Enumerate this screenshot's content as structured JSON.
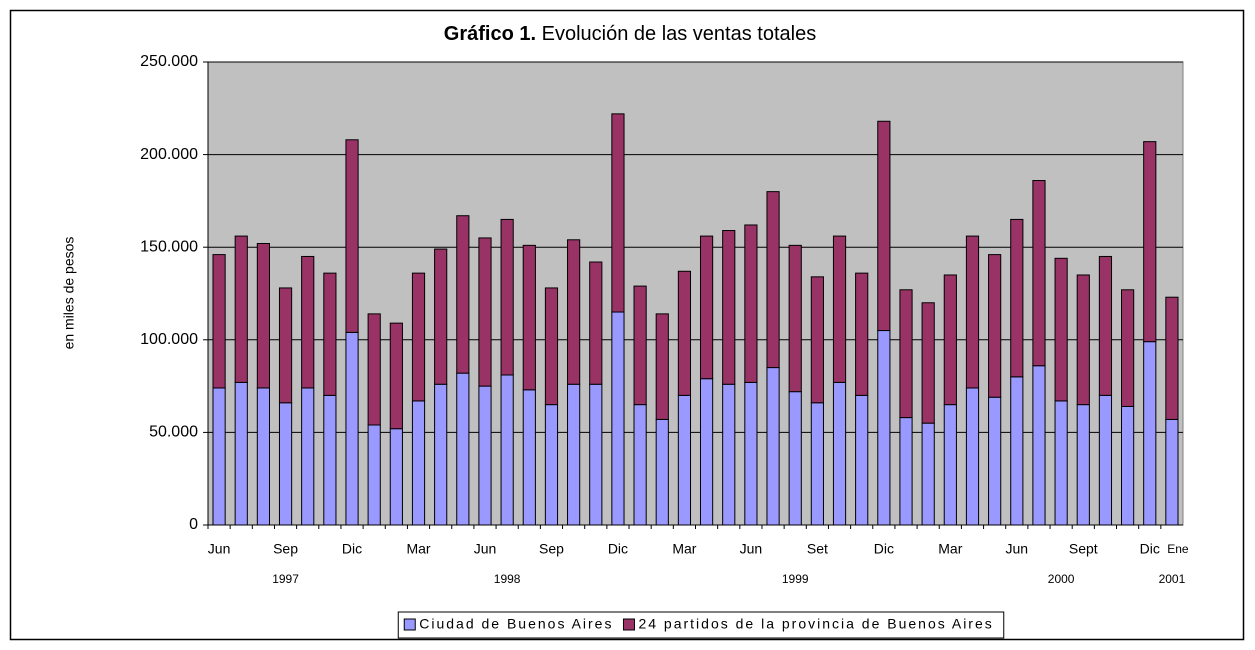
{
  "chart_data": {
    "type": "stacked_bar",
    "title_label": "Gráfico 1.",
    "title": "Evolución de las ventas totales",
    "y_label": "en miles de pesos",
    "categories": [
      "Jun",
      null,
      null,
      "Sep",
      null,
      null,
      "Dic",
      null,
      null,
      "Mar",
      null,
      null,
      "Jun",
      null,
      null,
      "Sep",
      null,
      null,
      "Dic",
      null,
      null,
      "Mar",
      null,
      null,
      "Jun",
      null,
      null,
      "Set",
      null,
      null,
      "Dic",
      null,
      null,
      "Mar",
      null,
      null,
      "Jun",
      null,
      null,
      "Sept",
      null,
      null,
      "Dic",
      "Ene"
    ],
    "category_groups": [
      null,
      null,
      null,
      "1997",
      null,
      null,
      null,
      null,
      null,
      null,
      null,
      null,
      null,
      "1998",
      null,
      null,
      null,
      null,
      null,
      null,
      null,
      null,
      null,
      null,
      null,
      null,
      "1999",
      null,
      null,
      null,
      null,
      null,
      null,
      null,
      null,
      null,
      null,
      null,
      "2000",
      null,
      null,
      null,
      null,
      "2001"
    ],
    "series": [
      {
        "name": "Ciudad de Buenos Aires",
        "color": "#9999ff",
        "values": [
          74000,
          77000,
          74000,
          66000,
          74000,
          70000,
          104000,
          54000,
          52000,
          67000,
          76000,
          82000,
          75000,
          81000,
          73000,
          65000,
          76000,
          76000,
          115000,
          65000,
          57000,
          70000,
          79000,
          76000,
          77000,
          85000,
          72000,
          66000,
          77000,
          70000,
          105000,
          58000,
          55000,
          65000,
          74000,
          69000,
          80000,
          86000,
          67000,
          65000,
          70000,
          64000,
          99000,
          57000
        ]
      },
      {
        "name": "24 partidos de la provincia de Buenos Aires",
        "color": "#993366",
        "values": [
          72000,
          79000,
          78000,
          62000,
          71000,
          66000,
          104000,
          60000,
          57000,
          69000,
          73000,
          85000,
          80000,
          84000,
          78000,
          63000,
          78000,
          66000,
          107000,
          64000,
          57000,
          67000,
          77000,
          83000,
          85000,
          95000,
          79000,
          68000,
          79000,
          66000,
          113000,
          69000,
          65000,
          70000,
          82000,
          77000,
          85000,
          100000,
          77000,
          70000,
          75000,
          63000,
          108000,
          66000
        ]
      }
    ],
    "ylim": [
      0,
      250000
    ],
    "yticks": [
      0,
      {
        "value": 50000,
        "label": "50.000"
      },
      {
        "value": 100000,
        "label": "100.000"
      },
      {
        "value": 150000,
        "label": "150.000"
      },
      {
        "value": 200000,
        "label": "200.000"
      },
      {
        "value": 250000,
        "label": "250.000"
      }
    ],
    "grid": true,
    "plot_background": "#c0c0c0",
    "legend": "bottom"
  }
}
